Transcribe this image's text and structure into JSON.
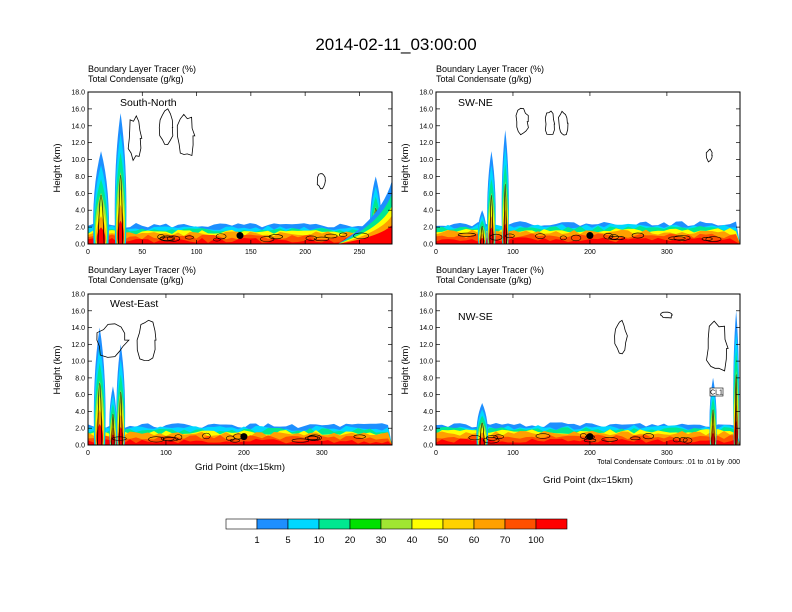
{
  "page_title": "2014-02-11_03:00:00",
  "colorbar": {
    "colors": [
      "#ffffff",
      "#1e8fff",
      "#00d8ff",
      "#00e890",
      "#00e000",
      "#a0e632",
      "#ffff00",
      "#ffd200",
      "#ffa000",
      "#ff5000",
      "#ff0000"
    ],
    "labels": [
      "1",
      "5",
      "10",
      "20",
      "30",
      "40",
      "50",
      "60",
      "70",
      "100"
    ]
  },
  "chart_data": [
    {
      "type": "heatmap",
      "title": "South-North",
      "subtitle_line1": "Boundary Layer Tracer   (%)",
      "subtitle_line2": "Total Condensate   (g/kg)",
      "ylabel": "Height (km)",
      "xlabel": "",
      "xlim": [
        0,
        280
      ],
      "ylim": [
        0,
        18
      ],
      "x_ticks": [
        "0",
        "50",
        "100",
        "150",
        "200",
        "250"
      ],
      "x_tick_values": [
        0,
        50,
        100,
        150,
        200,
        250
      ],
      "y_ticks": [
        "0.0",
        "2.0",
        "4.0",
        "6.0",
        "8.0",
        "10.0",
        "12.0",
        "14.0",
        "16.0",
        "18.0"
      ],
      "marker_x": 140,
      "plumes": [
        {
          "x": 30,
          "w": 10,
          "h": 15.5
        },
        {
          "x": 12,
          "w": 14,
          "h": 11
        },
        {
          "x": 265,
          "w": 10,
          "h": 8
        }
      ],
      "surface_layer_top_km": 1.2,
      "right_rise": {
        "start_x": 230,
        "end_h": 7.5
      },
      "clouds": [
        {
          "x": 43,
          "y": 12.5,
          "rx": 6,
          "ry": 2.5
        },
        {
          "x": 72,
          "y": 13.8,
          "rx": 6,
          "ry": 2
        },
        {
          "x": 90,
          "y": 12.8,
          "rx": 8,
          "ry": 2.6
        },
        {
          "x": 215,
          "y": 7.5,
          "rx": 4,
          "ry": 1
        }
      ]
    },
    {
      "type": "heatmap",
      "title": "SW-NE",
      "subtitle_line1": "Boundary Layer Tracer   (%)",
      "subtitle_line2": "Total Condensate   (g/kg)",
      "ylabel": "Height (km)",
      "xlabel": "",
      "xlim": [
        0,
        395
      ],
      "ylim": [
        0,
        18
      ],
      "x_ticks": [
        "0",
        "100",
        "200",
        "300"
      ],
      "x_tick_values": [
        0,
        100,
        200,
        300
      ],
      "y_ticks": [
        "0.0",
        "2.0",
        "4.0",
        "6.0",
        "8.0",
        "10.0",
        "12.0",
        "14.0",
        "16.0",
        "18.0"
      ],
      "marker_x": 200,
      "plumes": [
        {
          "x": 72,
          "w": 10,
          "h": 11
        },
        {
          "x": 90,
          "w": 8,
          "h": 13.5
        },
        {
          "x": 60,
          "w": 10,
          "h": 4
        }
      ],
      "surface_layer_top_km": 1.4,
      "right_rise": null,
      "clouds": [
        {
          "x": 112,
          "y": 14.5,
          "rx": 8,
          "ry": 1.5
        },
        {
          "x": 148,
          "y": 14.2,
          "rx": 6,
          "ry": 1.5
        },
        {
          "x": 165,
          "y": 14.3,
          "rx": 6,
          "ry": 1.5
        },
        {
          "x": 355,
          "y": 10.5,
          "rx": 4,
          "ry": 0.7
        }
      ]
    },
    {
      "type": "heatmap",
      "title": "West-East",
      "subtitle_line1": "Boundary Layer Tracer   (%)",
      "subtitle_line2": "Total Condensate   (g/kg)",
      "ylabel": "Height (km)",
      "xlabel": "Grid Point (dx=15km)",
      "xlim": [
        0,
        390
      ],
      "ylim": [
        0,
        18
      ],
      "x_ticks": [
        "0",
        "100",
        "200",
        "300"
      ],
      "x_tick_values": [
        0,
        100,
        200,
        300
      ],
      "y_ticks": [
        "0.0",
        "2.0",
        "4.0",
        "6.0",
        "8.0",
        "10.0",
        "12.0",
        "14.0",
        "16.0",
        "18.0"
      ],
      "marker_x": 200,
      "plumes": [
        {
          "x": 15,
          "w": 14,
          "h": 14
        },
        {
          "x": 42,
          "w": 10,
          "h": 12
        },
        {
          "x": 32,
          "w": 8,
          "h": 7
        }
      ],
      "surface_layer_top_km": 1.3,
      "right_rise": null,
      "clouds": [
        {
          "x": 30,
          "y": 12.5,
          "rx": 20,
          "ry": 2
        },
        {
          "x": 75,
          "y": 12.5,
          "rx": 12,
          "ry": 2.5
        }
      ]
    },
    {
      "type": "heatmap",
      "title": "NW-SE",
      "subtitle_line1": "Boundary Layer Tracer   (%)",
      "subtitle_line2": "Total Condensate   (g/kg)",
      "ylabel": "Height (km)",
      "xlabel": "Grid Point (dx=15km)",
      "xlim": [
        0,
        395
      ],
      "ylim": [
        0,
        18
      ],
      "x_ticks": [
        "0",
        "100",
        "200",
        "300"
      ],
      "x_tick_values": [
        0,
        100,
        200,
        300
      ],
      "y_ticks": [
        "0.0",
        "2.0",
        "4.0",
        "6.0",
        "8.0",
        "10.0",
        "12.0",
        "14.0",
        "16.0",
        "18.0"
      ],
      "marker_x": 200,
      "plumes": [
        {
          "x": 360,
          "w": 8,
          "h": 8
        },
        {
          "x": 60,
          "w": 14,
          "h": 5
        },
        {
          "x": 390,
          "w": 6,
          "h": 16
        }
      ],
      "surface_layer_top_km": 1.4,
      "right_rise": null,
      "clouds": [
        {
          "x": 240,
          "y": 13,
          "rx": 8,
          "ry": 2
        },
        {
          "x": 365,
          "y": 11.5,
          "rx": 14,
          "ry": 3
        },
        {
          "x": 300,
          "y": 15.5,
          "rx": 8,
          "ry": 0.4
        }
      ],
      "note": "Total Condensate Contours: .01 to .01 by .000",
      "inset_label": "CL1"
    }
  ]
}
